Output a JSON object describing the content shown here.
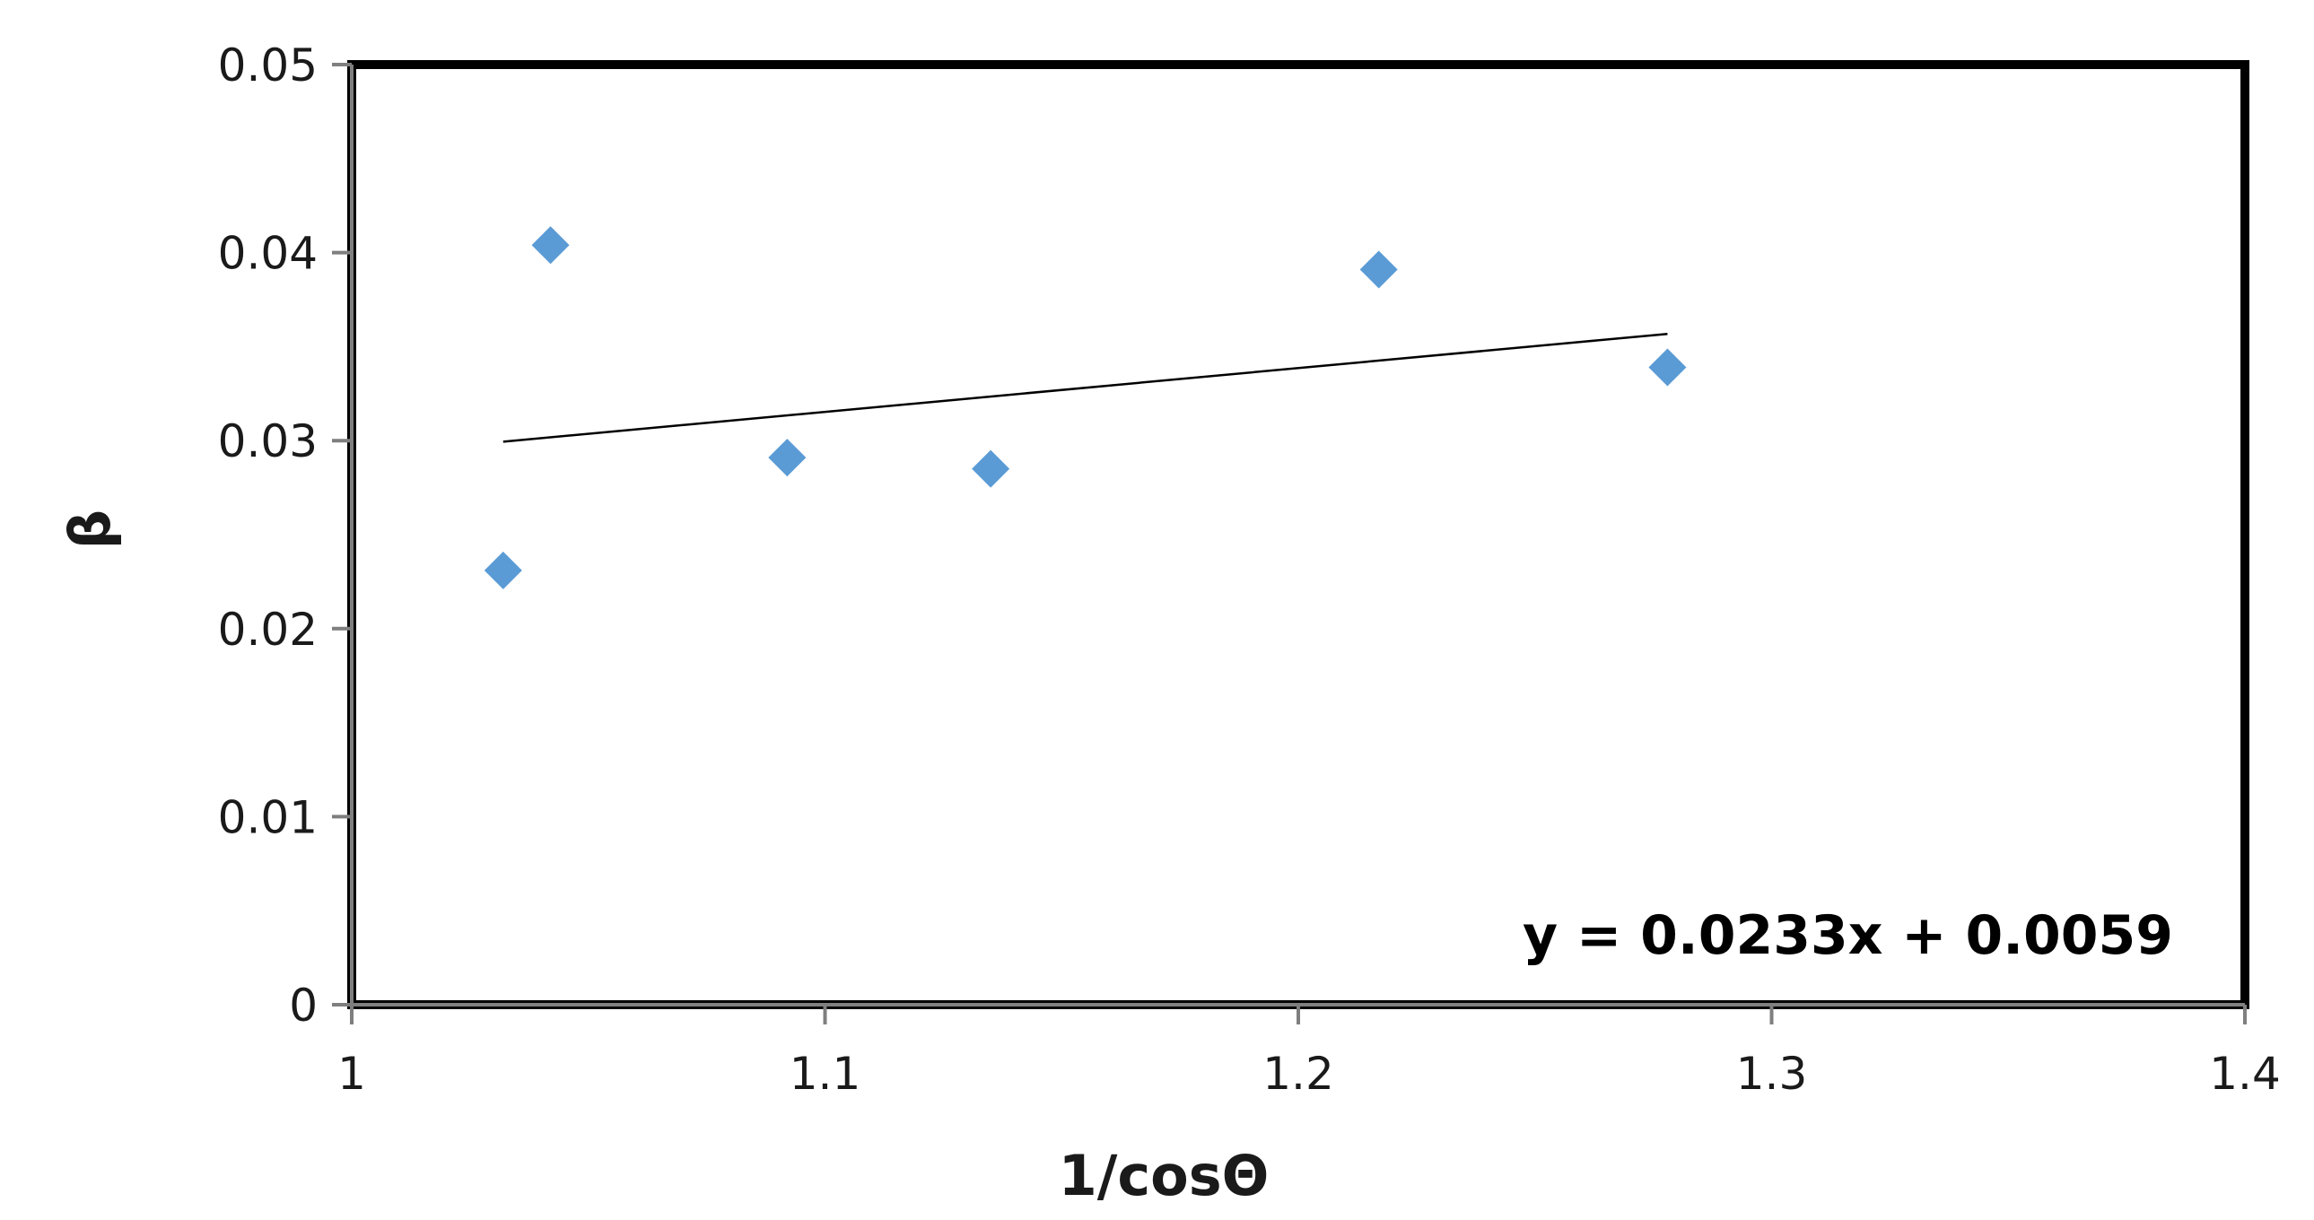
{
  "chart_data": {
    "type": "scatter",
    "xlabel": "1/cosΘ",
    "ylabel": "β",
    "xlim": [
      1,
      1.4
    ],
    "ylim": [
      0,
      0.05
    ],
    "x_ticks": [
      "1",
      "1.1",
      "1.2",
      "1.3",
      "1.4"
    ],
    "y_ticks": [
      "0",
      "0.01",
      "0.02",
      "0.03",
      "0.04",
      "0.05"
    ],
    "grid": false,
    "series": [
      {
        "marker": "diamond",
        "color": "#5b9bd5",
        "points": [
          {
            "x": 1.032,
            "y": 0.0231
          },
          {
            "x": 1.042,
            "y": 0.0404
          },
          {
            "x": 1.092,
            "y": 0.0291
          },
          {
            "x": 1.135,
            "y": 0.0285
          },
          {
            "x": 1.217,
            "y": 0.0391
          },
          {
            "x": 1.278,
            "y": 0.0339
          }
        ]
      }
    ],
    "trendline": {
      "type": "linear",
      "slope": 0.0233,
      "intercept": 0.0059,
      "x_start": 1.032,
      "x_end": 1.278,
      "color": "#000000"
    },
    "annotations": [
      {
        "text": "y = 0.0233x + 0.0059",
        "placement": "bottom-right"
      }
    ]
  }
}
